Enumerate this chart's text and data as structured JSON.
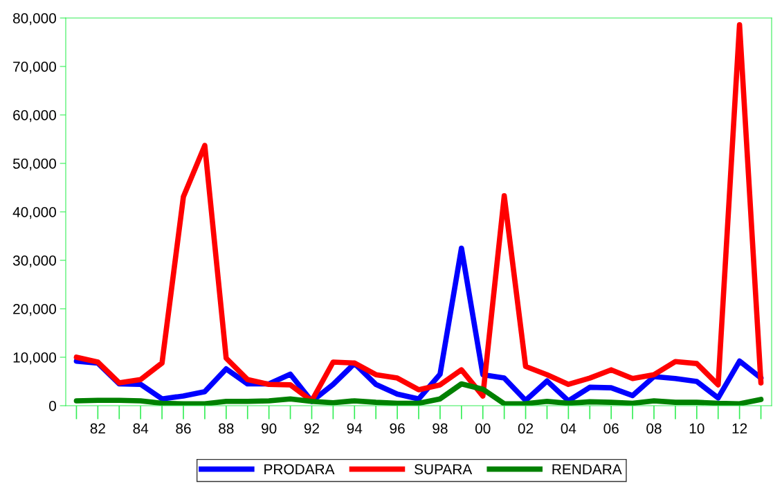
{
  "chart_data": {
    "type": "line",
    "categories": [
      null,
      "82",
      null,
      "84",
      null,
      "86",
      null,
      "88",
      null,
      "90",
      null,
      "92",
      null,
      "94",
      null,
      "96",
      null,
      "98",
      null,
      "00",
      null,
      "02",
      null,
      "04",
      null,
      "06",
      null,
      "08",
      null,
      "10",
      null,
      "12",
      null
    ],
    "series": [
      {
        "name": "PRODARA",
        "color": "#0000ff",
        "values": [
          9200,
          8800,
          4500,
          4400,
          1400,
          2000,
          2900,
          7600,
          4500,
          4500,
          6500,
          900,
          4400,
          8700,
          4400,
          2400,
          1400,
          6500,
          32500,
          6400,
          5700,
          1100,
          5100,
          1000,
          3800,
          3700,
          2100,
          6000,
          5600,
          5000,
          1600,
          9200,
          5700
        ]
      },
      {
        "name": "SUPARA",
        "color": "#ff0000",
        "values": [
          10000,
          9000,
          4700,
          5400,
          8800,
          43100,
          53700,
          9800,
          5400,
          4400,
          4300,
          1000,
          9000,
          8800,
          6400,
          5700,
          3300,
          4300,
          7400,
          2000,
          43300,
          8100,
          6400,
          4400,
          5700,
          7400,
          5600,
          6400,
          9100,
          8700,
          4300,
          78600,
          4700
        ]
      },
      {
        "name": "RENDARA",
        "color": "#008000",
        "values": [
          1000,
          1100,
          1100,
          1000,
          500,
          400,
          400,
          900,
          900,
          1000,
          1400,
          900,
          600,
          1000,
          700,
          500,
          500,
          1400,
          4500,
          3400,
          400,
          400,
          900,
          500,
          800,
          700,
          500,
          1000,
          700,
          700,
          500,
          400,
          1300
        ]
      }
    ],
    "ylim": [
      0,
      80000
    ],
    "yticks": [
      {
        "value": 0,
        "label": "0"
      },
      {
        "value": 10000,
        "label": "10,000"
      },
      {
        "value": 20000,
        "label": "20,000"
      },
      {
        "value": 30000,
        "label": "30,000"
      },
      {
        "value": 40000,
        "label": "40,000"
      },
      {
        "value": 50000,
        "label": "50,000"
      },
      {
        "value": 60000,
        "label": "60,000"
      },
      {
        "value": 70000,
        "label": "70,000"
      },
      {
        "value": 80000,
        "label": "80,000"
      }
    ],
    "grid": false,
    "legend": "bottom",
    "marker": "none",
    "line_style": "solid"
  }
}
